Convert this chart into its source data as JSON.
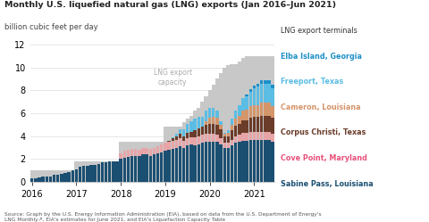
{
  "title": "Monthly U.S. liquefied natural gas (LNG) exports (Jan 2016–Jun 2021)",
  "subtitle": "billion cubic feet per day",
  "colors": {
    "sabine_pass": "#1b4f72",
    "cove_point": "#e8a5a8",
    "corpus_christi": "#6b3c2a",
    "cameron": "#d4956a",
    "freeport": "#5bbde4",
    "elba_island": "#1e90c8",
    "capacity": "#c8c8c8"
  },
  "legend_labels": [
    "LNG export terminals",
    "Elba Island, Georgia",
    "Freeport, Texas",
    "Cameron, Louisiana",
    "Corpus Christi, Texas",
    "Cove Point, Maryland",
    "Sabine Pass, Louisiana"
  ],
  "label_colors": [
    "#333333",
    "#1e90c8",
    "#5bbde4",
    "#d4956a",
    "#6b3c2a",
    "#e8507a",
    "#1b4f72"
  ],
  "ylim": [
    0,
    12
  ],
  "yticks": [
    0,
    2,
    4,
    6,
    8,
    10,
    12
  ],
  "year_starts": [
    0,
    12,
    24,
    36,
    48,
    60
  ],
  "year_labels": [
    "2016",
    "2017",
    "2018",
    "2019",
    "2020",
    "2021"
  ],
  "sabine_pass": [
    0.3,
    0.35,
    0.4,
    0.45,
    0.5,
    0.5,
    0.6,
    0.65,
    0.7,
    0.8,
    0.9,
    1.0,
    1.1,
    1.3,
    1.4,
    1.4,
    1.5,
    1.5,
    1.6,
    1.7,
    1.7,
    1.8,
    1.8,
    1.8,
    2.0,
    2.1,
    2.2,
    2.3,
    2.3,
    2.3,
    2.4,
    2.4,
    2.3,
    2.4,
    2.5,
    2.6,
    2.7,
    2.8,
    2.9,
    3.0,
    3.1,
    3.0,
    3.2,
    3.3,
    3.2,
    3.3,
    3.4,
    3.5,
    3.5,
    3.5,
    3.5,
    3.3,
    3.0,
    3.0,
    3.2,
    3.4,
    3.5,
    3.6,
    3.6,
    3.7,
    3.7,
    3.7,
    3.7,
    3.7,
    3.7,
    3.5
  ],
  "cove_point": [
    0.0,
    0.0,
    0.0,
    0.0,
    0.0,
    0.0,
    0.0,
    0.0,
    0.0,
    0.0,
    0.0,
    0.0,
    0.0,
    0.0,
    0.0,
    0.0,
    0.0,
    0.0,
    0.0,
    0.0,
    0.0,
    0.0,
    0.0,
    0.0,
    0.5,
    0.6,
    0.6,
    0.6,
    0.6,
    0.5,
    0.6,
    0.6,
    0.6,
    0.6,
    0.6,
    0.7,
    0.7,
    0.7,
    0.7,
    0.7,
    0.7,
    0.6,
    0.6,
    0.6,
    0.7,
    0.7,
    0.7,
    0.7,
    0.7,
    0.7,
    0.6,
    0.5,
    0.4,
    0.4,
    0.5,
    0.6,
    0.6,
    0.7,
    0.7,
    0.7,
    0.7,
    0.7,
    0.7,
    0.7,
    0.7,
    0.7
  ],
  "corpus_christi": [
    0.0,
    0.0,
    0.0,
    0.0,
    0.0,
    0.0,
    0.0,
    0.0,
    0.0,
    0.0,
    0.0,
    0.0,
    0.0,
    0.0,
    0.0,
    0.0,
    0.0,
    0.0,
    0.0,
    0.0,
    0.0,
    0.0,
    0.0,
    0.0,
    0.0,
    0.0,
    0.0,
    0.0,
    0.0,
    0.0,
    0.0,
    0.0,
    0.0,
    0.0,
    0.0,
    0.0,
    0.0,
    0.1,
    0.2,
    0.3,
    0.4,
    0.4,
    0.5,
    0.5,
    0.6,
    0.7,
    0.7,
    0.8,
    0.9,
    0.9,
    0.9,
    0.8,
    0.6,
    0.6,
    0.8,
    0.9,
    1.0,
    1.1,
    1.1,
    1.2,
    1.3,
    1.3,
    1.4,
    1.4,
    1.4,
    1.4
  ],
  "cameron": [
    0.0,
    0.0,
    0.0,
    0.0,
    0.0,
    0.0,
    0.0,
    0.0,
    0.0,
    0.0,
    0.0,
    0.0,
    0.0,
    0.0,
    0.0,
    0.0,
    0.0,
    0.0,
    0.0,
    0.0,
    0.0,
    0.0,
    0.0,
    0.0,
    0.0,
    0.0,
    0.0,
    0.0,
    0.0,
    0.0,
    0.0,
    0.0,
    0.0,
    0.0,
    0.0,
    0.0,
    0.0,
    0.0,
    0.0,
    0.0,
    0.0,
    0.0,
    0.0,
    0.0,
    0.0,
    0.0,
    0.0,
    0.3,
    0.5,
    0.6,
    0.6,
    0.4,
    0.2,
    0.3,
    0.5,
    0.6,
    0.7,
    0.8,
    0.9,
    1.0,
    1.0,
    1.0,
    1.1,
    1.1,
    1.1,
    1.0
  ],
  "freeport": [
    0.0,
    0.0,
    0.0,
    0.0,
    0.0,
    0.0,
    0.0,
    0.0,
    0.0,
    0.0,
    0.0,
    0.0,
    0.0,
    0.0,
    0.0,
    0.0,
    0.0,
    0.0,
    0.0,
    0.0,
    0.0,
    0.0,
    0.0,
    0.0,
    0.0,
    0.0,
    0.0,
    0.0,
    0.0,
    0.0,
    0.0,
    0.0,
    0.0,
    0.0,
    0.0,
    0.0,
    0.0,
    0.0,
    0.1,
    0.2,
    0.4,
    0.6,
    0.8,
    0.9,
    1.0,
    1.0,
    0.9,
    0.9,
    0.9,
    0.8,
    0.6,
    0.3,
    0.1,
    0.2,
    0.5,
    0.7,
    0.9,
    1.1,
    1.2,
    1.3,
    1.5,
    1.6,
    1.7,
    1.7,
    1.7,
    1.6
  ],
  "elba_island": [
    0.0,
    0.0,
    0.0,
    0.0,
    0.0,
    0.0,
    0.0,
    0.0,
    0.0,
    0.0,
    0.0,
    0.0,
    0.0,
    0.0,
    0.0,
    0.0,
    0.0,
    0.0,
    0.0,
    0.0,
    0.0,
    0.0,
    0.0,
    0.0,
    0.0,
    0.0,
    0.0,
    0.0,
    0.0,
    0.0,
    0.0,
    0.0,
    0.0,
    0.0,
    0.0,
    0.0,
    0.0,
    0.0,
    0.0,
    0.0,
    0.0,
    0.0,
    0.0,
    0.0,
    0.0,
    0.0,
    0.0,
    0.0,
    0.0,
    0.0,
    0.0,
    0.0,
    0.0,
    0.0,
    0.0,
    0.0,
    0.0,
    0.0,
    0.1,
    0.2,
    0.2,
    0.3,
    0.3,
    0.3,
    0.3,
    0.3
  ],
  "capacity": [
    1.0,
    1.0,
    1.0,
    1.0,
    1.0,
    1.0,
    1.0,
    1.0,
    1.0,
    1.0,
    1.0,
    1.0,
    1.8,
    1.8,
    1.8,
    1.8,
    1.8,
    1.8,
    1.8,
    1.8,
    1.8,
    1.8,
    1.8,
    1.8,
    3.5,
    3.5,
    3.5,
    3.5,
    3.5,
    3.5,
    3.5,
    3.5,
    3.5,
    3.5,
    3.5,
    3.5,
    4.8,
    4.8,
    4.8,
    4.8,
    4.8,
    5.2,
    5.5,
    5.8,
    6.2,
    6.5,
    7.0,
    7.5,
    8.0,
    8.5,
    9.0,
    9.5,
    10.0,
    10.2,
    10.3,
    10.3,
    10.5,
    10.8,
    11.0,
    11.0,
    11.0,
    11.0,
    11.0,
    11.0,
    11.0,
    11.0
  ]
}
